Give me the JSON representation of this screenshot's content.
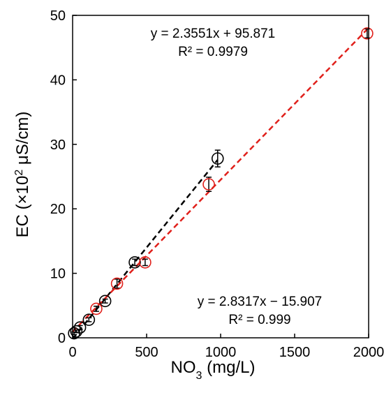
{
  "chart_data": {
    "type": "scatter",
    "xlabel": {
      "main": "NO",
      "sub": "3",
      "unit": " (mg/L)"
    },
    "ylabel": {
      "pre": "EC (×10",
      "sup": "2",
      "post": " μS/cm)"
    },
    "xlim": [
      0,
      2000
    ],
    "ylim": [
      0,
      50
    ],
    "x_ticks": [
      0,
      500,
      1000,
      1500,
      2000
    ],
    "y_ticks": [
      0,
      10,
      20,
      30,
      40,
      50
    ],
    "grid": false,
    "series": [
      {
        "color": "#000000",
        "points": [
          {
            "x": 10,
            "y": 0.7,
            "err": 0.2
          },
          {
            "x": 25,
            "y": 1.0,
            "err": 0.2
          },
          {
            "x": 50,
            "y": 1.6,
            "err": 0.3
          },
          {
            "x": 110,
            "y": 2.8,
            "err": 0.3
          },
          {
            "x": 220,
            "y": 5.7,
            "err": 0.3
          },
          {
            "x": 420,
            "y": 11.7,
            "err": 0.5
          },
          {
            "x": 980,
            "y": 27.8,
            "err": 1.3
          }
        ],
        "fit": {
          "slope": 2.8317,
          "intercept": -15.907,
          "x_range": [
            0,
            980
          ],
          "unit_divisor": 100
        }
      },
      {
        "color": "#e0201b",
        "points": [
          {
            "x": 160,
            "y": 4.5,
            "err": 0.4
          },
          {
            "x": 300,
            "y": 8.4,
            "err": 0.7
          },
          {
            "x": 490,
            "y": 11.7,
            "err": 0.5
          },
          {
            "x": 920,
            "y": 23.8,
            "err": 1.1
          },
          {
            "x": 1990,
            "y": 47.2,
            "err": 0.7
          }
        ],
        "fit": {
          "slope": 2.3551,
          "intercept": 95.871,
          "x_range": [
            0,
            1990
          ],
          "unit_divisor": 100
        }
      }
    ],
    "annotations": [
      {
        "eq": "y = 2.3551x + 95.871",
        "r2": "R² = 0.9979"
      },
      {
        "eq": "y = 2.8317x − 15.907",
        "r2": "R² = 0.999"
      }
    ]
  }
}
